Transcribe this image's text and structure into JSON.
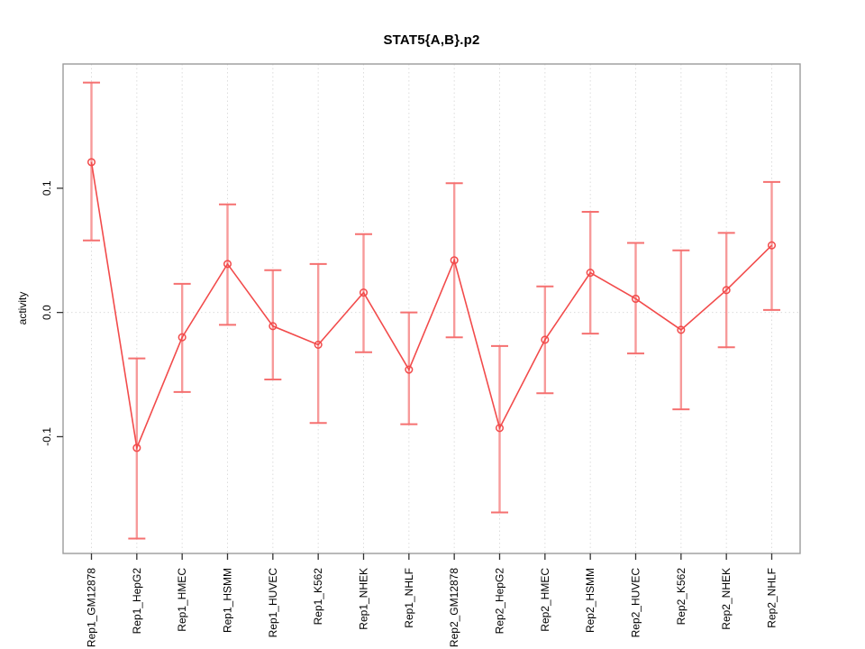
{
  "page": {
    "background": "#ffffff"
  },
  "chart_data": {
    "type": "line",
    "title": "STAT5{A,B}.p2",
    "xlabel": "",
    "ylabel": "activity",
    "ylim": [
      -0.194,
      0.2
    ],
    "yticks": [
      {
        "value": 0.1,
        "label": "0.1"
      },
      {
        "value": 0.0,
        "label": "0.0"
      },
      {
        "value": -0.1,
        "label": "-0.1"
      }
    ],
    "grid": {
      "vertical_gridlines": true,
      "zero_line_dotted": true
    },
    "legend_position": "none",
    "point_style": "open-circle",
    "error_bars": true,
    "categories": [
      "Rep1_GM12878",
      "Rep1_HepG2",
      "Rep1_HMEC",
      "Rep1_HSMM",
      "Rep1_HUVEC",
      "Rep1_K562",
      "Rep1_NHEK",
      "Rep1_NHLF",
      "Rep2_GM12878",
      "Rep2_HepG2",
      "Rep2_HMEC",
      "Rep2_HSMM",
      "Rep2_HUVEC",
      "Rep2_K562",
      "Rep2_NHEK",
      "Rep2_NHLF"
    ],
    "series": [
      {
        "name": "activity",
        "values": [
          0.121,
          -0.109,
          -0.02,
          0.039,
          -0.011,
          -0.026,
          0.016,
          -0.046,
          0.042,
          -0.093,
          -0.022,
          0.032,
          0.011,
          -0.014,
          0.018,
          0.054
        ],
        "error_high": [
          0.185,
          -0.037,
          0.023,
          0.087,
          0.034,
          0.039,
          0.063,
          0.0,
          0.104,
          -0.027,
          0.021,
          0.081,
          0.056,
          0.05,
          0.064,
          0.105
        ],
        "error_low": [
          0.058,
          -0.182,
          -0.064,
          -0.01,
          -0.054,
          -0.089,
          -0.032,
          -0.09,
          -0.02,
          -0.161,
          -0.065,
          -0.017,
          -0.033,
          -0.078,
          -0.028,
          0.002
        ]
      }
    ],
    "colors": {
      "line": "#f24b4b",
      "point": "#f24b4b",
      "error_bar": "#f79a9a",
      "error_cap": "#f57070",
      "grid": "#dcdcdc",
      "box": "#9b9b9b",
      "tick": "#333333",
      "text": "#000000"
    }
  }
}
